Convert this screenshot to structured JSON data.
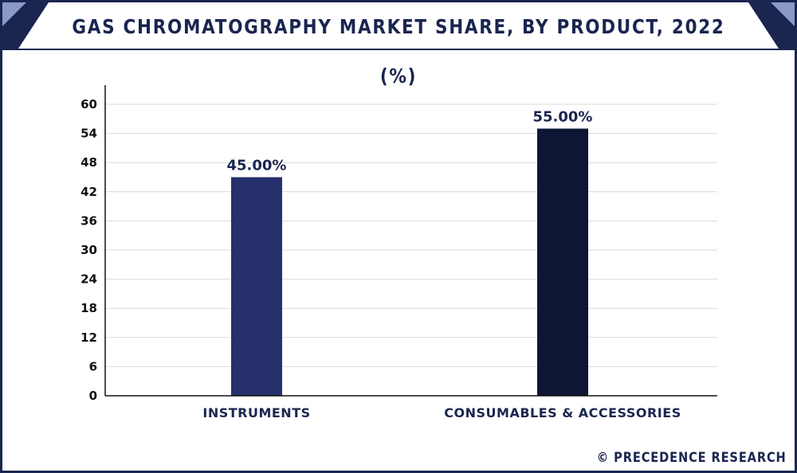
{
  "title": "GAS CHROMATOGRAPHY MARKET SHARE, BY PRODUCT, 2022 (%)",
  "credit": "© PRECEDENCE RESEARCH",
  "colors": {
    "frame": "#1a2550",
    "corner_light": "#8a9ac8",
    "gridline": "#d9d9d9",
    "axis": "#111111"
  },
  "chart_data": {
    "type": "bar",
    "title": "GAS CHROMATOGRAPHY MARKET SHARE, BY PRODUCT, 2022 (%)",
    "categories": [
      "INSTRUMENTS",
      "CONSUMABLES & ACCESSORIES"
    ],
    "values": [
      45.0,
      55.0
    ],
    "data_labels": [
      "45.00%",
      "55.00%"
    ],
    "bar_colors": [
      "#26306a",
      "#0d1633"
    ],
    "xlabel": "",
    "ylabel": "",
    "ylim": [
      0,
      60
    ],
    "yticks": [
      0,
      6,
      12,
      18,
      24,
      30,
      36,
      42,
      48,
      54,
      60
    ],
    "grid": true,
    "legend": "none"
  }
}
